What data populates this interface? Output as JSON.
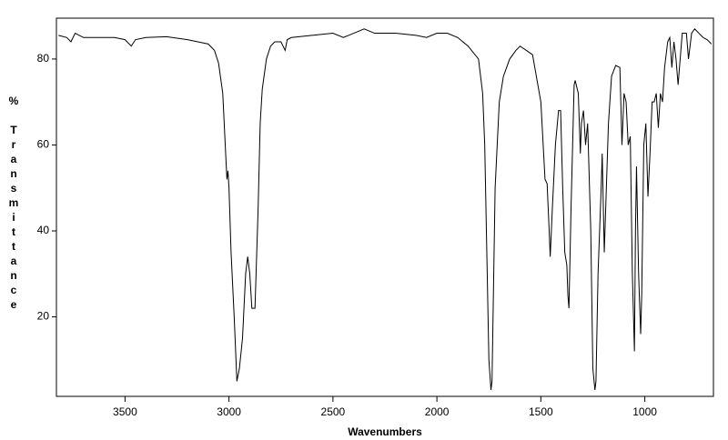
{
  "chart_data": {
    "type": "line",
    "xlabel": "Wavenumbers",
    "ylabel": "% Transmittance",
    "color": "#000000",
    "xlim": [
      3830,
      670
    ],
    "ylim": [
      1.5,
      89.5
    ],
    "xticks": [
      3500,
      3000,
      2500,
      2000,
      1500,
      1000
    ],
    "yticks": [
      20,
      40,
      60,
      80
    ],
    "x": [
      3820,
      3780,
      3760,
      3740,
      3700,
      3650,
      3600,
      3550,
      3500,
      3470,
      3450,
      3400,
      3300,
      3200,
      3150,
      3100,
      3070,
      3050,
      3030,
      3020,
      3010,
      3005,
      3000,
      2990,
      2975,
      2962,
      2950,
      2935,
      2920,
      2910,
      2900,
      2890,
      2875,
      2860,
      2850,
      2840,
      2820,
      2800,
      2780,
      2750,
      2730,
      2720,
      2700,
      2600,
      2500,
      2450,
      2400,
      2350,
      2300,
      2200,
      2100,
      2050,
      2000,
      1950,
      1900,
      1850,
      1800,
      1780,
      1770,
      1760,
      1750,
      1740,
      1735,
      1730,
      1720,
      1710,
      1700,
      1680,
      1650,
      1620,
      1600,
      1570,
      1540,
      1500,
      1480,
      1470,
      1460,
      1455,
      1445,
      1430,
      1415,
      1405,
      1395,
      1385,
      1375,
      1370,
      1365,
      1355,
      1340,
      1335,
      1320,
      1310,
      1305,
      1295,
      1285,
      1275,
      1260,
      1250,
      1240,
      1235,
      1225,
      1210,
      1205,
      1195,
      1185,
      1175,
      1160,
      1140,
      1120,
      1110,
      1100,
      1090,
      1080,
      1070,
      1060,
      1050,
      1045,
      1040,
      1030,
      1020,
      1015,
      1005,
      995,
      985,
      975,
      965,
      955,
      945,
      935,
      925,
      915,
      905,
      890,
      880,
      870,
      860,
      850,
      840,
      830,
      820,
      800,
      790,
      775,
      760,
      740,
      720,
      700,
      680
    ],
    "values": [
      85.5,
      85,
      84,
      86,
      85,
      85,
      85,
      85,
      84.5,
      83,
      84.5,
      85,
      85.2,
      84.5,
      84,
      83.5,
      82,
      79,
      72,
      62,
      52,
      54,
      50,
      35,
      20,
      5,
      8,
      15,
      30,
      34,
      30,
      22,
      22,
      45,
      65,
      73,
      80,
      83,
      84,
      84,
      82,
      84.5,
      85,
      85.5,
      86,
      85,
      86,
      87,
      86,
      86,
      85.5,
      85,
      86,
      86,
      85,
      83,
      80,
      72,
      60,
      35,
      10,
      3,
      5,
      20,
      50,
      60,
      70,
      76,
      80,
      82,
      83,
      82,
      81,
      70,
      52,
      51,
      40,
      34,
      45,
      60,
      68,
      68,
      50,
      35,
      32,
      25,
      22,
      45,
      74,
      75,
      72,
      58,
      65,
      68,
      60,
      65,
      40,
      8,
      3,
      5,
      30,
      50,
      58,
      35,
      50,
      65,
      76,
      78.5,
      78,
      60,
      72,
      70,
      60,
      62,
      30,
      12,
      40,
      55,
      30,
      16,
      25,
      60,
      65,
      48,
      58,
      70,
      70,
      72,
      64,
      72,
      70,
      78,
      84,
      85,
      78,
      84,
      80,
      74,
      80,
      86,
      86,
      80,
      86,
      87,
      86,
      85,
      84.5,
      83.5
    ]
  }
}
